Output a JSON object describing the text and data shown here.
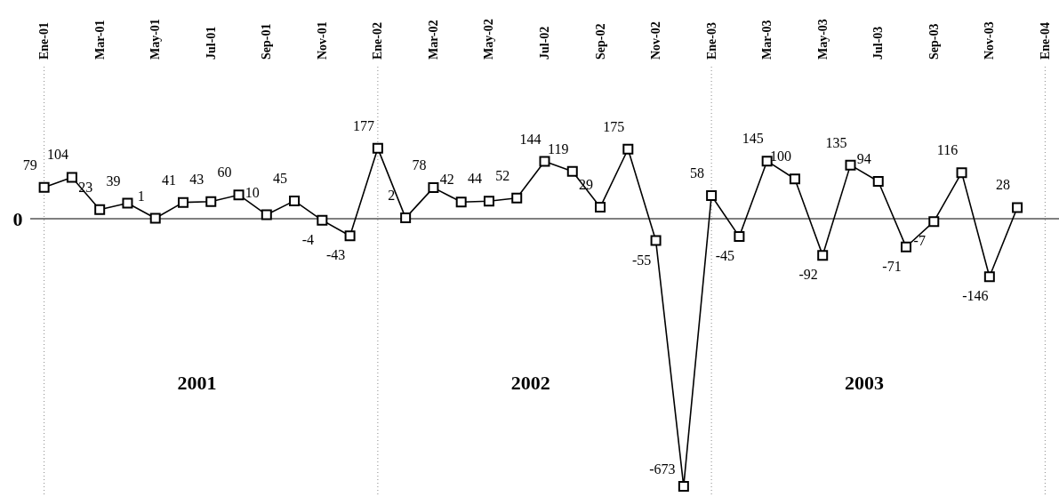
{
  "chart_data": {
    "type": "line",
    "categories": [
      "Ene-01",
      null,
      "Mar-01",
      null,
      "May-01",
      null,
      "Jul-01",
      null,
      "Sep-01",
      null,
      "Nov-01",
      null,
      "Ene-02",
      null,
      "Mar-02",
      null,
      "May-02",
      null,
      "Jul-02",
      null,
      "Sep-02",
      null,
      "Nov-02",
      null,
      "Ene-03",
      null,
      "Mar-03",
      null,
      "May-03",
      null,
      "Jul-03",
      null,
      "Sep-03",
      null,
      "Nov-03",
      null,
      "Ene-04"
    ],
    "series": [
      {
        "color": "#000000",
        "values": [
          79,
          104,
          23,
          39,
          1,
          41,
          43,
          60,
          10,
          45,
          -4,
          -43,
          177,
          2,
          78,
          42,
          44,
          52,
          144,
          119,
          29,
          175,
          -55,
          -673,
          58,
          -45,
          145,
          100,
          -92,
          135,
          94,
          -71,
          -7,
          116,
          -146,
          28,
          null
        ]
      }
    ],
    "marker": "square",
    "line_style": "solid",
    "data_labels": true,
    "ref_lines": [
      {
        "axis": "y",
        "value": 0,
        "label": "0",
        "color": "#000000"
      },
      {
        "axis": "x",
        "value": "Ene-01",
        "line_style": "dotted",
        "color": "#888888"
      },
      {
        "axis": "x",
        "value": "Ene-02",
        "line_style": "dotted",
        "color": "#888888"
      },
      {
        "axis": "x",
        "value": "Ene-03",
        "line_style": "dotted",
        "color": "#888888"
      },
      {
        "axis": "x",
        "value": "Ene-04",
        "line_style": "dotted",
        "color": "#888888"
      }
    ],
    "annotations": [
      "2001",
      "2002",
      "2003"
    ]
  }
}
